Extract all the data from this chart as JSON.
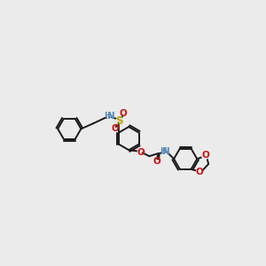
{
  "bg_color": "#ebebeb",
  "bond_color": "#1a1a1a",
  "bond_lw": 1.4,
  "atom_colors": {
    "N": "#5b8db8",
    "O": "#cc1111",
    "S": "#b8a800",
    "H": "#5b8db8"
  },
  "figsize": [
    3.0,
    3.0
  ],
  "dpi": 100,
  "font_size_atom": 7.5,
  "font_size_h": 6.5
}
